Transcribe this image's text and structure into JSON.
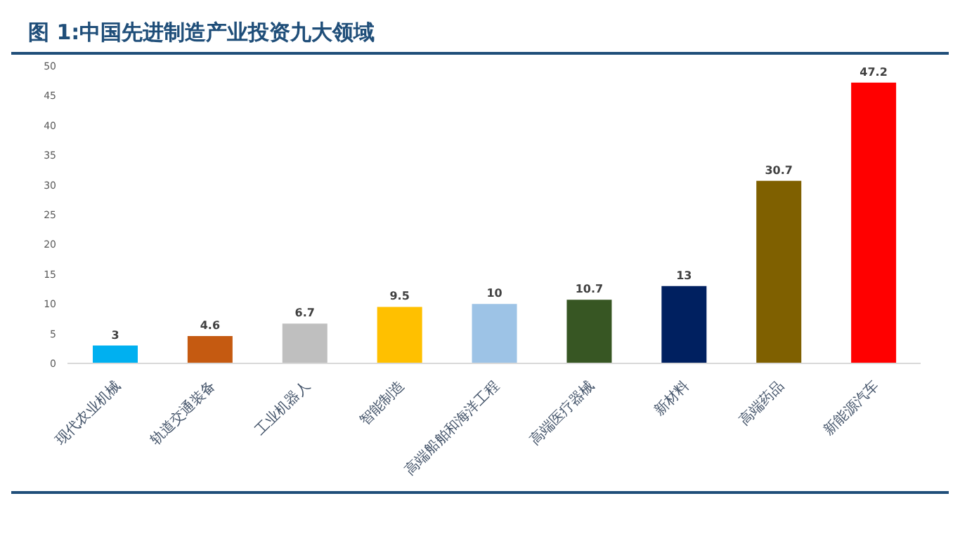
{
  "chart_data": {
    "type": "bar",
    "title": "图 1:中国先进制造产业投资九大领域",
    "categories": [
      "现代农业机械",
      "轨道交通装备",
      "工业机器人",
      "智能制造",
      "高端船舶和海洋工程",
      "高端医疗器械",
      "新材料",
      "高端药品",
      "新能源汽车"
    ],
    "values": [
      3,
      4.6,
      6.7,
      9.5,
      10,
      10.7,
      13,
      30.7,
      47.2
    ],
    "colors": [
      "#00b0f0",
      "#c55a11",
      "#bfbfbf",
      "#ffc000",
      "#9dc3e6",
      "#375623",
      "#002060",
      "#7f6000",
      "#ff0000"
    ],
    "ylim": [
      0,
      50
    ],
    "yticks": [
      0,
      5,
      10,
      15,
      20,
      25,
      30,
      35,
      40,
      45,
      50
    ],
    "data_labels": true
  }
}
